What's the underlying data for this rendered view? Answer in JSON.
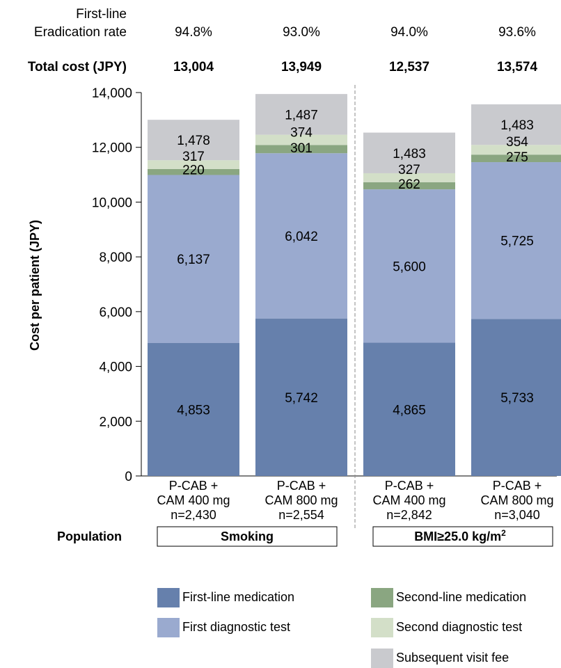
{
  "chart_data": {
    "type": "bar",
    "stacked": true,
    "header_rows": {
      "eradication_label_line1": "First-line",
      "eradication_label_line2": "Eradication rate",
      "eradication_rates": [
        "94.8%",
        "93.0%",
        "94.0%",
        "93.6%"
      ],
      "total_cost_label": "Total cost (JPY)",
      "total_costs": [
        "13,004",
        "13,949",
        "12,537",
        "13,574"
      ]
    },
    "categories": [
      [
        "P-CAB +",
        "CAM 400 mg",
        "n=2,430"
      ],
      [
        "P-CAB +",
        "CAM 800 mg",
        "n=2,554"
      ],
      [
        "P-CAB +",
        "CAM 400 mg",
        "n=2,842"
      ],
      [
        "P-CAB +",
        "CAM 800 mg",
        "n=3,040"
      ]
    ],
    "series": [
      {
        "name": "First-line medication",
        "color": "#6680ac",
        "values": [
          4853,
          5742,
          4865,
          5733
        ]
      },
      {
        "name": "First diagnostic test",
        "color": "#9aaacf",
        "values": [
          6137,
          6042,
          5600,
          5725
        ]
      },
      {
        "name": "Second-line medication",
        "color": "#8aa681",
        "values": [
          220,
          301,
          262,
          275
        ]
      },
      {
        "name": "Second diagnostic test",
        "color": "#d3dfc8",
        "values": [
          317,
          374,
          327,
          354
        ]
      },
      {
        "name": "Subsequent visit fee",
        "color": "#c9cace",
        "values": [
          1478,
          1487,
          1483,
          1483
        ]
      }
    ],
    "value_labels": [
      [
        "4,853",
        "5,742",
        "4,865",
        "5,733"
      ],
      [
        "6,137",
        "6,042",
        "5,600",
        "5,725"
      ],
      [
        "220",
        "301",
        "262",
        "275"
      ],
      [
        "317",
        "374",
        "327",
        "354"
      ],
      [
        "1,478",
        "1,487",
        "1,483",
        "1,483"
      ]
    ],
    "ylabel": "Cost per patient (JPY)",
    "ylim": [
      0,
      14000
    ],
    "yticks": [
      0,
      2000,
      4000,
      6000,
      8000,
      10000,
      12000,
      14000
    ],
    "ytick_labels": [
      "0",
      "2,000",
      "4,000",
      "6,000",
      "8,000",
      "10,000",
      "12,000",
      "14,000"
    ],
    "grid": false,
    "population_label": "Population",
    "groups": [
      {
        "label": "Smoking",
        "bars": [
          0,
          1
        ]
      },
      {
        "label_main": "BMI≥25.0 kg/m",
        "label_sup": "2",
        "bars": [
          2,
          3
        ]
      }
    ],
    "legend_placement": "bottom"
  }
}
